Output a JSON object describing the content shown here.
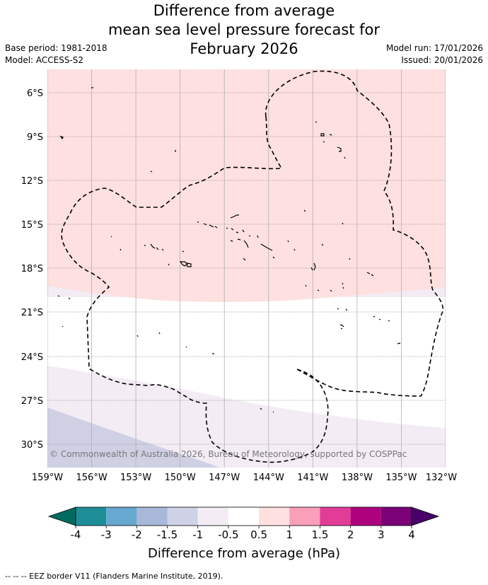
{
  "title": {
    "line1": "Difference from average",
    "line2": "mean sea level pressure forecast for",
    "line3": "February 2026"
  },
  "meta": {
    "base_period": "Base period: 1981-2018",
    "model": "Model: ACCESS-S2",
    "model_run": "Model run: 17/01/2026",
    "issued": "Issued: 20/01/2026"
  },
  "map": {
    "lon_ticks": [
      "159°W",
      "156°W",
      "153°W",
      "150°W",
      "147°W",
      "144°W",
      "141°W",
      "138°W",
      "135°W",
      "132°W"
    ],
    "lat_ticks": [
      "6°S",
      "9°S",
      "12°S",
      "15°S",
      "18°S",
      "21°S",
      "24°S",
      "27°S",
      "30°S"
    ],
    "copyright": "© Commonwealth of Australia 2026, Bureau of Meteorology, supported by COSPPac",
    "colors": {
      "band_0.5_1": "#fde0df",
      "band_-0.5_0.5": "#ffffff",
      "band_-1_-0.5": "#f3ecf5",
      "band_-1.5_-1": "#d0d0e5",
      "eez_line": "#000000"
    }
  },
  "colorbar": {
    "label": "Difference from average (hPa)",
    "ticks": [
      "-4",
      "-3",
      "-2",
      "-1.5",
      "-1",
      "-0.5",
      "0.5",
      "1",
      "1.5",
      "2",
      "3",
      "4"
    ],
    "colors": [
      "#1e8f99",
      "#67a8d0",
      "#a7b8d8",
      "#cfd1e6",
      "#f3ecf5",
      "#ffffff",
      "#fde0df",
      "#f99fb9",
      "#e13d97",
      "#ae017e",
      "#7a0177"
    ],
    "extend_low_color": "#006b5f",
    "extend_high_color": "#49006a"
  },
  "footer": "-- -- -- EEZ border V11 (Flanders Marine Institute, 2019)."
}
